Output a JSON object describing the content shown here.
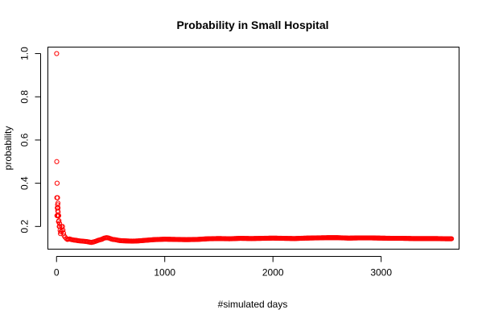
{
  "chart_data": {
    "type": "scatter",
    "title": "Probability in Small Hospital",
    "xlabel": "#simulated days",
    "ylabel": "probability",
    "xlim": [
      -80,
      3720
    ],
    "ylim": [
      0.095,
      1.03
    ],
    "x_ticks": [
      0,
      1000,
      2000,
      3000
    ],
    "y_ticks": [
      0.2,
      0.4,
      0.6,
      0.8,
      1.0
    ],
    "x_tick_labels": [
      "0",
      "1000",
      "2000",
      "3000"
    ],
    "y_tick_labels": [
      "0.2",
      "0.4",
      "0.6",
      "0.8",
      "1.0"
    ],
    "grid": false,
    "marker": "open-circle",
    "point_color": "#ff0000",
    "series": [
      {
        "x": [
          1,
          2,
          3,
          4,
          5,
          6,
          7,
          8,
          9,
          10,
          11,
          12,
          13,
          14,
          15,
          16,
          18,
          20,
          22,
          25,
          28,
          30,
          33,
          36,
          40,
          45,
          50,
          55,
          60,
          65,
          70,
          80,
          90,
          100,
          120,
          140,
          160,
          180,
          200,
          220,
          240,
          260,
          280,
          300,
          320,
          340,
          360,
          380,
          400,
          420,
          440,
          460,
          480,
          500,
          520,
          540,
          560,
          580,
          600,
          650,
          700,
          750,
          800,
          850,
          900,
          950,
          1000,
          1100,
          1200,
          1300,
          1400,
          1500,
          1600,
          1700,
          1800,
          1900,
          2000,
          2100,
          2200,
          2300,
          2400,
          2500,
          2600,
          2700,
          2800,
          2900,
          3000,
          3100,
          3200,
          3300,
          3400,
          3500,
          3600,
          3650
        ],
        "y": [
          1.0,
          0.5,
          0.333,
          0.25,
          0.4,
          0.333,
          0.286,
          0.25,
          0.333,
          0.3,
          0.273,
          0.25,
          0.308,
          0.286,
          0.267,
          0.25,
          0.222,
          0.25,
          0.227,
          0.2,
          0.214,
          0.2,
          0.182,
          0.167,
          0.175,
          0.2,
          0.18,
          0.2,
          0.183,
          0.169,
          0.157,
          0.15,
          0.144,
          0.14,
          0.142,
          0.139,
          0.137,
          0.136,
          0.134,
          0.133,
          0.132,
          0.131,
          0.13,
          0.128,
          0.126,
          0.128,
          0.131,
          0.135,
          0.138,
          0.141,
          0.146,
          0.148,
          0.147,
          0.143,
          0.14,
          0.139,
          0.137,
          0.135,
          0.134,
          0.133,
          0.132,
          0.133,
          0.135,
          0.137,
          0.139,
          0.14,
          0.141,
          0.14,
          0.139,
          0.14,
          0.143,
          0.144,
          0.143,
          0.145,
          0.144,
          0.145,
          0.146,
          0.145,
          0.144,
          0.146,
          0.147,
          0.148,
          0.148,
          0.146,
          0.147,
          0.147,
          0.146,
          0.145,
          0.145,
          0.144,
          0.144,
          0.144,
          0.143,
          0.143
        ]
      }
    ]
  }
}
